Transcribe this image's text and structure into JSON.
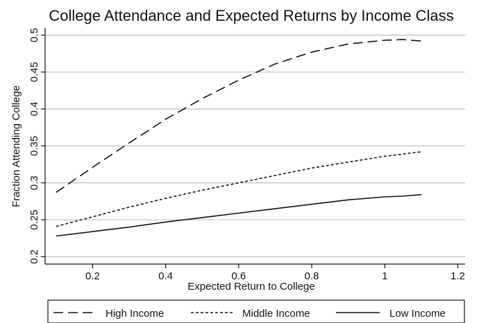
{
  "chart_data": {
    "type": "line",
    "title": "College Attendance and Expected Returns by Income Class",
    "xlabel": "Expected Return to College",
    "ylabel": "Fraction Attending College",
    "xlim": [
      0.07,
      1.22
    ],
    "ylim": [
      0.19,
      0.51
    ],
    "xticks": [
      0.2,
      0.4,
      0.6,
      0.8,
      1,
      1.2
    ],
    "xtick_labels": [
      "0.2",
      "0.4",
      "0.6",
      "0.8",
      "1",
      "1.2"
    ],
    "yticks": [
      0.2,
      0.25,
      0.3,
      0.35,
      0.4,
      0.45,
      0.5
    ],
    "ytick_labels": [
      "0.2",
      "0.25",
      "0.3",
      "0.35",
      "0.4",
      "0.45",
      "0.5"
    ],
    "grid": "horizontal",
    "legend_position": "bottom",
    "x": [
      0.1,
      0.2,
      0.3,
      0.4,
      0.5,
      0.6,
      0.7,
      0.8,
      0.9,
      1.0,
      1.05,
      1.1
    ],
    "series": [
      {
        "name": "High Income",
        "style": "dashed",
        "values": [
          0.287,
          0.321,
          0.354,
          0.386,
          0.414,
          0.439,
          0.461,
          0.477,
          0.488,
          0.493,
          0.494,
          0.492
        ]
      },
      {
        "name": "Middle Income",
        "style": "dotted",
        "values": [
          0.241,
          0.254,
          0.267,
          0.279,
          0.29,
          0.3,
          0.31,
          0.32,
          0.328,
          0.336,
          0.339,
          0.342
        ]
      },
      {
        "name": "Low Income",
        "style": "solid",
        "values": [
          0.228,
          0.234,
          0.24,
          0.247,
          0.253,
          0.259,
          0.265,
          0.271,
          0.277,
          0.281,
          0.282,
          0.284
        ]
      }
    ],
    "colors": {
      "line": "#111111",
      "grid": "#bfbfbf",
      "frame": "#111111"
    }
  }
}
